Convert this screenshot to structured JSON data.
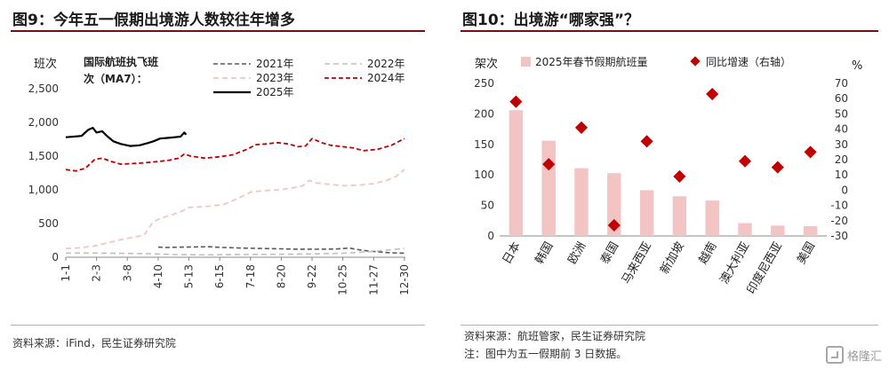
{
  "left": {
    "title": "图9：今年五一假期出境游人数较往年增多",
    "source": "资料来源：iFind，民生证券研究院"
  },
  "right": {
    "title": "图10：出境游“哪家强”？",
    "source": "资料来源：航班管家，民生证券研究院",
    "note": "注：图中为五一假期前 3 日数据。"
  },
  "watermark": "格隆汇",
  "colors": {
    "s2021": "#595959",
    "s2022": "#bfbfbf",
    "s2023": "#f2c4c4",
    "s2024": "#c00000",
    "s2025": "#000000",
    "bar": "#f2c4c4",
    "marker": "#c00000"
  },
  "chart_data": [
    {
      "type": "line",
      "ylabel": "班次",
      "inner_label": [
        "国际航班执飞班",
        "次（MA7）："
      ],
      "ylim": [
        0,
        2500
      ],
      "yticks": [
        "0",
        "500",
        "1,000",
        "1,500",
        "2,000",
        "2,500"
      ],
      "x_domain": [
        1,
        365
      ],
      "xticks": [
        {
          "label": "1-1",
          "day": 1
        },
        {
          "label": "2-3",
          "day": 34
        },
        {
          "label": "3-8",
          "day": 67
        },
        {
          "label": "4-10",
          "day": 100
        },
        {
          "label": "5-13",
          "day": 133
        },
        {
          "label": "6-15",
          "day": 166
        },
        {
          "label": "7-18",
          "day": 199
        },
        {
          "label": "8-20",
          "day": 232
        },
        {
          "label": "9-22",
          "day": 265
        },
        {
          "label": "10-25",
          "day": 298
        },
        {
          "label": "11-27",
          "day": 331
        },
        {
          "label": "12-30",
          "day": 364
        }
      ],
      "series": [
        {
          "name": "2021年",
          "color": "#595959",
          "dash": "5,3",
          "width": 1.6,
          "x": [
            100,
            110,
            125,
            140,
            155,
            170,
            190,
            210,
            230,
            250,
            270,
            290,
            305,
            320,
            335,
            350,
            364
          ],
          "y": [
            150,
            145,
            150,
            152,
            155,
            145,
            135,
            130,
            125,
            120,
            118,
            122,
            135,
            100,
            80,
            65,
            60
          ]
        },
        {
          "name": "2022年",
          "color": "#bfbfbf",
          "dash": "6,4",
          "width": 1.6,
          "x": [
            1,
            30,
            60,
            90,
            120,
            150,
            180,
            210,
            240,
            270,
            300,
            330,
            364
          ],
          "y": [
            60,
            62,
            58,
            52,
            40,
            35,
            40,
            42,
            45,
            50,
            60,
            85,
            130
          ]
        },
        {
          "name": "2023年",
          "color": "#f2c4c4",
          "dash": "6,4",
          "width": 1.8,
          "x": [
            1,
            15,
            30,
            45,
            60,
            75,
            85,
            95,
            105,
            115,
            125,
            133,
            150,
            170,
            185,
            200,
            215,
            230,
            245,
            255,
            262,
            270,
            285,
            300,
            315,
            330,
            345,
            355,
            364
          ],
          "y": [
            130,
            140,
            160,
            210,
            260,
            300,
            330,
            530,
            590,
            630,
            680,
            740,
            750,
            780,
            870,
            970,
            990,
            1000,
            1030,
            1060,
            1140,
            1100,
            1080,
            1060,
            1070,
            1090,
            1140,
            1200,
            1300
          ]
        },
        {
          "name": "2024年",
          "color": "#c00000",
          "dash": "5,3",
          "width": 1.8,
          "x": [
            1,
            12,
            22,
            32,
            40,
            50,
            60,
            72,
            85,
            100,
            112,
            122,
            128,
            135,
            150,
            165,
            180,
            195,
            205,
            215,
            228,
            240,
            250,
            258,
            265,
            275,
            285,
            298,
            310,
            320,
            335,
            350,
            364
          ],
          "y": [
            1300,
            1280,
            1320,
            1450,
            1470,
            1420,
            1380,
            1390,
            1400,
            1420,
            1440,
            1470,
            1530,
            1500,
            1470,
            1490,
            1520,
            1600,
            1670,
            1680,
            1700,
            1680,
            1640,
            1650,
            1760,
            1700,
            1660,
            1640,
            1620,
            1580,
            1600,
            1660,
            1760
          ]
        },
        {
          "name": "2025年",
          "color": "#000000",
          "dash": "",
          "width": 2.2,
          "x": [
            1,
            10,
            18,
            25,
            30,
            34,
            40,
            45,
            52,
            60,
            70,
            80,
            88,
            95,
            102,
            110,
            118,
            124,
            128,
            130
          ],
          "y": [
            1780,
            1790,
            1800,
            1890,
            1920,
            1850,
            1870,
            1800,
            1720,
            1680,
            1650,
            1660,
            1690,
            1720,
            1760,
            1770,
            1780,
            1790,
            1850,
            1820
          ]
        }
      ],
      "legend": [
        "2021年",
        "2022年",
        "2023年",
        "2024年",
        "2025年"
      ]
    },
    {
      "type": "bar",
      "categories": [
        "日本",
        "韩国",
        "欧洲",
        "泰国",
        "马来西亚",
        "新加坡",
        "越南",
        "澳大利亚",
        "印度尼西亚",
        "美国"
      ],
      "series": [
        {
          "name": "2025年春节假期航班量",
          "axis": "left",
          "values": [
            206,
            156,
            111,
            103,
            75,
            65,
            58,
            21,
            17,
            16
          ]
        },
        {
          "name": "同比增速（右轴）",
          "axis": "right",
          "values": [
            58,
            17,
            41,
            -23,
            32,
            9,
            63,
            19,
            15,
            25
          ]
        }
      ],
      "ylabel_left": "架次",
      "ylabel_right": "%",
      "ylim_left": [
        0,
        250
      ],
      "ylim_right": [
        -30,
        70
      ],
      "yticks_left": [
        "0",
        "50",
        "100",
        "150",
        "200",
        "250"
      ],
      "yticks_right": [
        "-30",
        "-20",
        "-10",
        "0",
        "10",
        "20",
        "30",
        "40",
        "50",
        "60",
        "70"
      ]
    }
  ]
}
